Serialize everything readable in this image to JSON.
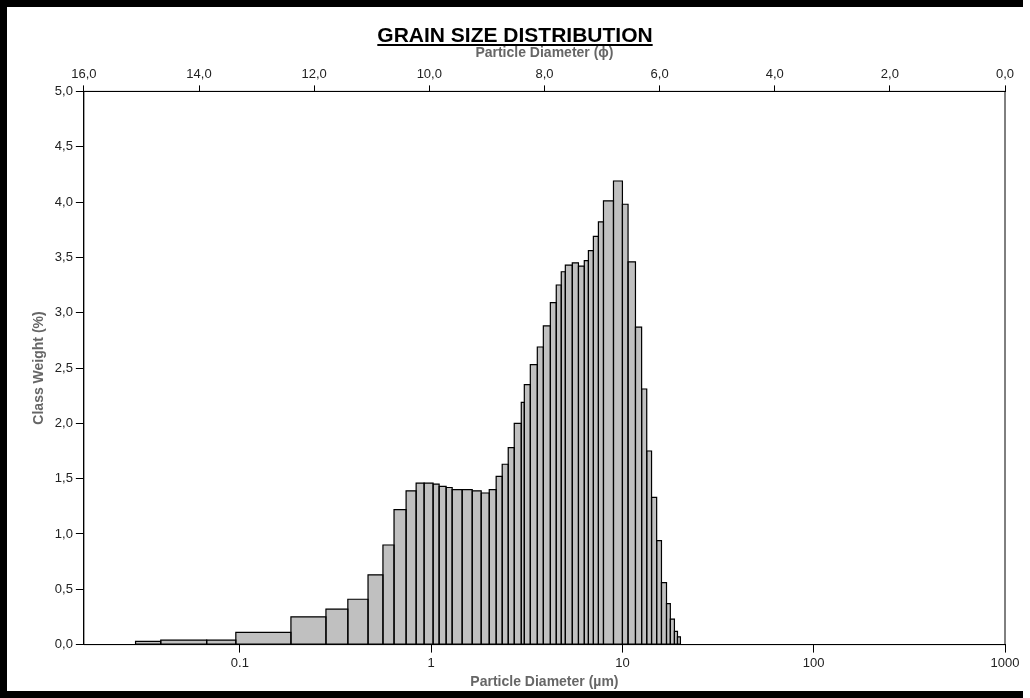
{
  "chart_data": {
    "type": "histogram",
    "title": "GRAIN SIZE DISTRIBUTION",
    "xlabel": "Particle Diameter (µm)",
    "x2label": "Particle Diameter (ϕ)",
    "ylabel": "Class Weight (%)",
    "bins": [
      0.0285,
      0.0386,
      0.0671,
      0.0953,
      0.185,
      0.282,
      0.367,
      0.468,
      0.56,
      0.64,
      0.74,
      0.835,
      0.919,
      1.024,
      1.101,
      1.198,
      1.288,
      1.453,
      1.64,
      1.827,
      2.013,
      2.188,
      2.353,
      2.53,
      2.72,
      2.96,
      3.07,
      3.3,
      3.59,
      3.86,
      4.2,
      4.51,
      4.79,
      5.03,
      5.47,
      5.89,
      6.32,
      6.64,
      7.05,
      7.49,
      7.96,
      8.98,
      10.0,
      10.7,
      11.7,
      12.6,
      13.4,
      14.2,
      15.1,
      16.0,
      17.0,
      17.8,
      18.7,
      19.4,
      20.1
    ],
    "values": [
      0.03,
      0.04,
      0.04,
      0.11,
      0.25,
      0.32,
      0.41,
      0.63,
      0.9,
      1.22,
      1.39,
      1.46,
      1.46,
      1.45,
      1.43,
      1.42,
      1.4,
      1.4,
      1.39,
      1.37,
      1.4,
      1.52,
      1.63,
      1.78,
      2.0,
      2.19,
      2.35,
      2.53,
      2.69,
      2.88,
      3.09,
      3.25,
      3.37,
      3.43,
      3.45,
      3.42,
      3.47,
      3.56,
      3.69,
      3.82,
      4.01,
      4.19,
      3.98,
      3.46,
      2.87,
      2.31,
      1.75,
      1.33,
      0.94,
      0.56,
      0.37,
      0.23,
      0.12,
      0.07
    ],
    "color": "#c0c0c0",
    "log": "x",
    "xlim": [
      0.0153,
      1000
    ],
    "xticks": [
      0.1,
      1,
      10,
      100,
      1000
    ],
    "x2lim": [
      16,
      0
    ],
    "x2ticks": [
      {
        "value": 16,
        "label": "16,0"
      },
      {
        "value": 14,
        "label": "14,0"
      },
      {
        "value": 12,
        "label": "12,0"
      },
      {
        "value": 10,
        "label": "10,0"
      },
      {
        "value": 8,
        "label": "8,0"
      },
      {
        "value": 6,
        "label": "6,0"
      },
      {
        "value": 4,
        "label": "4,0"
      },
      {
        "value": 2,
        "label": "2,0"
      },
      {
        "value": 0,
        "label": "0,0"
      }
    ],
    "ylim": [
      0,
      5
    ],
    "yticks": [
      {
        "value": 0,
        "label": "0,0"
      },
      {
        "value": 0.5,
        "label": "0,5"
      },
      {
        "value": 1,
        "label": "1,0"
      },
      {
        "value": 1.5,
        "label": "1,5"
      },
      {
        "value": 2,
        "label": "2,0"
      },
      {
        "value": 2.5,
        "label": "2,5"
      },
      {
        "value": 3,
        "label": "3,0"
      },
      {
        "value": 3.5,
        "label": "3,5"
      },
      {
        "value": 4,
        "label": "4,0"
      },
      {
        "value": 4.5,
        "label": "4,5"
      },
      {
        "value": 5,
        "label": "5,0"
      }
    ],
    "grid": false,
    "legend": false
  }
}
